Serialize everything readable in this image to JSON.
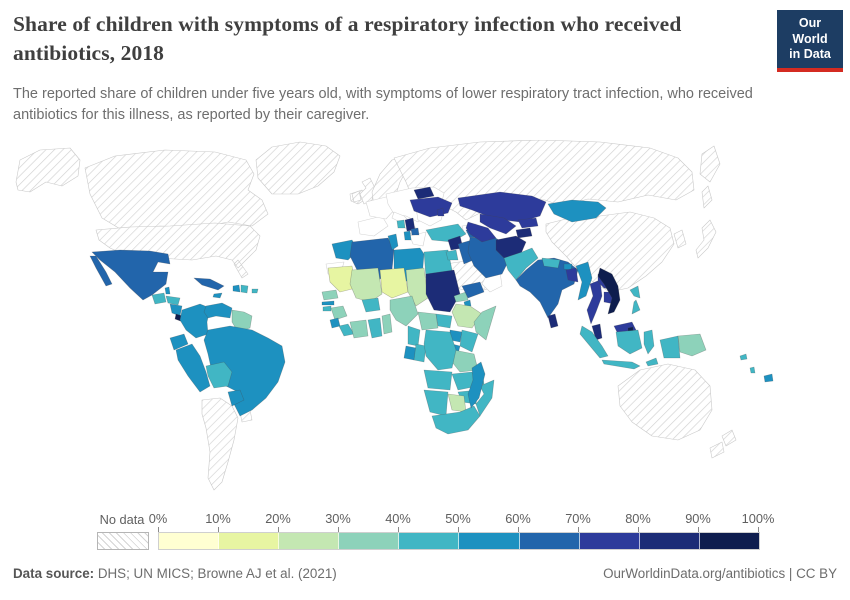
{
  "header": {
    "title": "Share of children with symptoms of a respiratory infection who received antibiotics, 2018",
    "subtitle": "The reported share of children under five years old, with symptoms of lower respiratory tract infection, who received antibiotics for this illness, as reported by their caregiver.",
    "logo": {
      "line1": "Our World",
      "line2": "in Data",
      "bg_color": "#1d3d63",
      "accent_color": "#d42b21"
    }
  },
  "footer": {
    "source_label": "Data source:",
    "source_text": " DHS; UN MICS; Browne AJ et al. (2021)",
    "rights": "OurWorldinData.org/antibiotics | CC BY"
  },
  "legend": {
    "no_data_label": "No data",
    "tick_labels": [
      "0%",
      "10%",
      "20%",
      "30%",
      "40%",
      "50%",
      "60%",
      "70%",
      "80%",
      "90%",
      "100%"
    ]
  },
  "chart_data": {
    "type": "choropleth",
    "title": "Share of children with symptoms of a respiratory infection who received antibiotics",
    "year": 2018,
    "unit": "%",
    "no_data": {
      "label": "No data",
      "style": "hatched"
    },
    "bins": [
      {
        "range": "0-10%",
        "color": "#ffffd2"
      },
      {
        "range": "10-20%",
        "color": "#e7f5a2"
      },
      {
        "range": "20-30%",
        "color": "#c4e7b2"
      },
      {
        "range": "30-40%",
        "color": "#8dd2ba"
      },
      {
        "range": "40-50%",
        "color": "#41b6c4"
      },
      {
        "range": "50-60%",
        "color": "#1d91c0"
      },
      {
        "range": "60-70%",
        "color": "#2265ab"
      },
      {
        "range": "70-80%",
        "color": "#2d3b9b"
      },
      {
        "range": "80-90%",
        "color": "#1c2c77"
      },
      {
        "range": "90-100%",
        "color": "#0e1d4e"
      }
    ],
    "regions": {
      "greenland": "no-data",
      "alaska": "no-data",
      "canada": "no-data",
      "usa": "no-data",
      "argentina-chile": "no-data",
      "uruguay": "no-data",
      "iceland": "no-data",
      "uk": "no-data",
      "ireland": "no-data",
      "scandinavia": "no-data",
      "russia": "no-data",
      "kamchatka": "no-data",
      "sakhalin": "no-data",
      "china": "no-data",
      "korea": "no-data",
      "japan": "no-data",
      "saudi-arabia": "no-data",
      "australia": "no-data",
      "new-zealand": "no-data",
      "iberia": "none",
      "france": "none",
      "central-europe": "none",
      "italy": "none",
      "romania-bulgaria": "none",
      "greece": "none",
      "georgia": "none",
      "oman": "none",
      "western-sahara": "none",
      "mauritania": "10-20%",
      "niger": "10-20%",
      "mali": "20-30%",
      "chad": "20-30%",
      "ethiopia": "20-30%",
      "botswana": "20-30%",
      "senegal": "30-40%",
      "guinea": "30-40%",
      "ivory-coast": "30-40%",
      "togo-benin": "30-40%",
      "nigeria": "30-40%",
      "car": "30-40%",
      "eritrea": "30-40%",
      "somalia": "30-40%",
      "tanzania": "30-40%",
      "guyanas": "30-40%",
      "papua-new-guinea": "30-40%",
      "guinea-bissau": "40-50%",
      "liberia": "40-50%",
      "burkina-faso": "40-50%",
      "ghana": "40-50%",
      "cameroon": "40-50%",
      "south-sudan": "40-50%",
      "kenya": "40-50%",
      "drc": "40-50%",
      "congo": "40-50%",
      "angola": "40-50%",
      "zambia": "40-50%",
      "malawi": "40-50%",
      "mozambique": "40-50%",
      "zimbabwe": "40-50%",
      "namibia": "40-50%",
      "south-africa": "40-50%",
      "bolivia": "40-50%",
      "guatemala": "40-50%",
      "honduras": "40-50%",
      "dominican-republic": "40-50%",
      "puerto-rico": "40-50%",
      "egypt": "40-50%",
      "turkey": "40-50%",
      "pakistan": "40-50%",
      "nepal": "40-50%",
      "indonesia": "40-50%",
      "philippines": "40-50%",
      "timor": "40-50%",
      "jordan": "40-50%",
      "bosnia": "40-50%",
      "vanuatu": "40-50%",
      "solomon-islands": "40-50%",
      "morocco": "50-60%",
      "tunisia": "50-60%",
      "libya": "50-60%",
      "gambia": "50-60%",
      "sierra-leone": "50-60%",
      "gabon": "50-60%",
      "uganda": "50-60%",
      "rwanda-burundi": "50-60%",
      "djibouti": "50-60%",
      "madagascar": "50-60%",
      "colombia": "50-60%",
      "venezuela": "50-60%",
      "ecuador": "50-60%",
      "peru": "50-60%",
      "brazil": "50-60%",
      "paraguay": "50-60%",
      "nicaragua": "50-60%",
      "belize": "50-60%",
      "jamaica": "50-60%",
      "haiti": "50-60%",
      "albania": "50-60%",
      "myanmar": "50-60%",
      "mongolia": "50-60%",
      "fiji": "50-60%",
      "bhutan": "50-60%",
      "mexico": "60-70%",
      "cuba": "60-70%",
      "algeria": "60-70%",
      "iraq": "60-70%",
      "iran": "60-70%",
      "yemen": "60-70%",
      "armenia-azerbaijan": "60-70%",
      "macedonia": "60-70%",
      "india": "60-70%",
      "ukraine": "70-80%",
      "moldova": "70-80%",
      "kazakhstan": "70-80%",
      "uzbekistan": "70-80%",
      "turkmenistan": "70-80%",
      "kyrgyzstan": "70-80%",
      "laos": "70-80%",
      "cambodia": "70-80%",
      "thailand": "70-80%",
      "bangladesh": "70-80%",
      "malaysia-borneo": "70-80%",
      "belarus": "80-90%",
      "serbia": "80-90%",
      "syria": "80-90%",
      "sudan": "80-90%",
      "tajikistan": "80-90%",
      "afghanistan": "80-90%",
      "sri-lanka": "80-90%",
      "malaysia": "80-90%",
      "panama": "80-90%",
      "vietnam": "90-100%",
      "brunei": "90-100%",
      "costa-rica": "90-100%"
    }
  }
}
